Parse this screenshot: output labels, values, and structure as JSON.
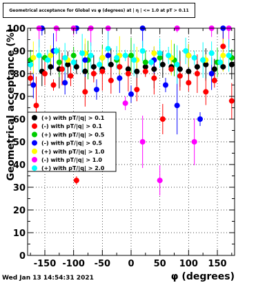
{
  "title": "Geometrical acceptance for Global vs φ (degrees) at | η | <= 1.0 at pT > 0.11",
  "timestamp": "Wed Jan 13 14:54:31 2021",
  "chart_data": {
    "type": "scatter",
    "title": "Geometrical acceptance for Global vs φ (degrees) at | η | <= 1.0 at pT > 0.11",
    "xlabel": "φ (degrees)",
    "ylabel": "Geometrical acceptance (%)",
    "xlim": [
      -180,
      180
    ],
    "ylim": [
      0,
      100
    ],
    "xticks": [
      -150,
      -100,
      -50,
      0,
      50,
      100,
      150
    ],
    "yticks": [
      0,
      10,
      20,
      30,
      40,
      50,
      60,
      70,
      80,
      90,
      100
    ],
    "grid": true,
    "legend_position": "left",
    "series": [
      {
        "name": "(+) with pT/|q| > 0.1",
        "color": "#000000",
        "x": [
          -175,
          -155,
          -140,
          -125,
          -110,
          -95,
          -80,
          -65,
          -50,
          -35,
          -20,
          -5,
          10,
          25,
          40,
          55,
          70,
          85,
          100,
          115,
          130,
          145,
          160,
          175
        ],
        "y": [
          84,
          81,
          83,
          82,
          84,
          83,
          81,
          83,
          82,
          84,
          83,
          82,
          81,
          83,
          82,
          84,
          83,
          82,
          81,
          83,
          84,
          82,
          83,
          84
        ]
      },
      {
        "name": "(-) with pT/|q| > 0.1",
        "color": "#ff0000",
        "x": [
          -175,
          -165,
          -150,
          -135,
          -120,
          -105,
          -95,
          -80,
          -65,
          -50,
          -35,
          -20,
          -5,
          10,
          25,
          40,
          55,
          70,
          85,
          100,
          115,
          130,
          145,
          160,
          175
        ],
        "y": [
          78,
          66,
          80,
          75,
          82,
          79,
          33,
          72,
          80,
          81,
          77,
          83,
          80,
          73,
          81,
          78,
          60,
          82,
          79,
          76,
          80,
          72,
          77,
          92,
          68
        ]
      },
      {
        "name": "(+) with pT/|q| > 0.5",
        "color": "#00cc00",
        "x": [
          -175,
          -150,
          -125,
          -100,
          -75,
          -50,
          -25,
          0,
          25,
          50,
          75,
          100,
          125,
          150,
          175
        ],
        "y": [
          86,
          87,
          85,
          88,
          86,
          87,
          86,
          88,
          85,
          87,
          86,
          88,
          86,
          85,
          87
        ]
      },
      {
        "name": "(-) with pT/|q| > 0.5",
        "color": "#0000ff",
        "x": [
          -170,
          -155,
          -135,
          -115,
          -95,
          -80,
          -60,
          -40,
          -20,
          0,
          20,
          40,
          60,
          80,
          100,
          120,
          140,
          160
        ],
        "y": [
          75,
          100,
          90,
          76,
          100,
          86,
          73,
          88,
          78,
          71,
          100,
          86,
          75,
          66,
          88,
          60,
          80,
          100
        ]
      },
      {
        "name": "(+) with pT/|q| > 1.0",
        "color": "#ffff00",
        "x": [
          -170,
          -140,
          -110,
          -80,
          -50,
          -20,
          10,
          40,
          70,
          100,
          130,
          160
        ],
        "y": [
          87,
          88,
          86,
          89,
          87,
          88,
          86,
          89,
          87,
          88,
          86,
          88
        ]
      },
      {
        "name": "(-) with pT/|q| > 1.0",
        "color": "#ff00ff",
        "x": [
          -160,
          -130,
          -100,
          -70,
          -40,
          -10,
          20,
          50,
          80,
          110,
          140,
          170
        ],
        "y": [
          100,
          100,
          100,
          100,
          100,
          67,
          50,
          33,
          100,
          50,
          100,
          100
        ]
      },
      {
        "name": "(+) with pT/|q| > 2.0",
        "color": "#00ffff",
        "x": [
          -175,
          -160,
          -145,
          -130,
          -115,
          -100,
          -85,
          -70,
          -55,
          -40,
          -25,
          -10,
          5,
          20,
          35,
          50,
          65,
          80,
          95,
          110,
          125,
          140,
          155,
          170
        ],
        "y": [
          84,
          88,
          86,
          90,
          87,
          85,
          89,
          88,
          84,
          91,
          87,
          88,
          86,
          90,
          85,
          89,
          88,
          84,
          90,
          87,
          86,
          89,
          85,
          88
        ]
      }
    ]
  }
}
